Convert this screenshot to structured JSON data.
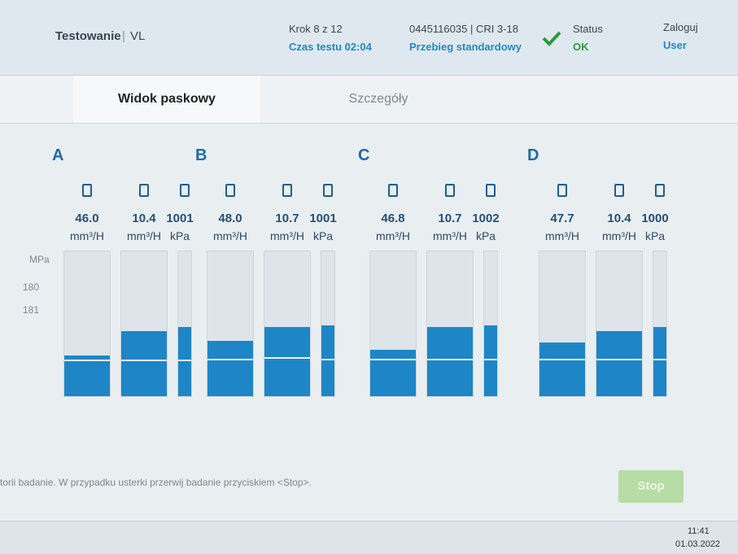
{
  "header": {
    "title": "Testowanie",
    "subtitle": "VL",
    "step": "Krok 8 z 12",
    "time": "Czas testu 02:04",
    "part": "0445116035 | CRI 3-18",
    "mode": "Przebieg standardowy",
    "status_label": "Status",
    "status_value": "OK",
    "login_label": "Zaloguj",
    "login_user": "User"
  },
  "tabs": [
    "Widok paskowy",
    "Szczegóły"
  ],
  "side": {
    "header": "MPa",
    "values": [
      "180",
      "181"
    ]
  },
  "groups": [
    {
      "label": "A",
      "bars": [
        {
          "value": "46.0",
          "unit": "mm³/H",
          "level": 28,
          "marker": 24
        },
        {
          "value": "10.4",
          "unit": "mm³/H",
          "level": 45,
          "marker": 24
        },
        {
          "value": "1001",
          "unit": "kPa",
          "level": 48,
          "marker": 24
        }
      ]
    },
    {
      "label": "B",
      "bars": [
        {
          "value": "48.0",
          "unit": "mm³/H",
          "level": 38,
          "marker": 25
        },
        {
          "value": "10.7",
          "unit": "mm³/H",
          "level": 48,
          "marker": 26
        },
        {
          "value": "1001",
          "unit": "kPa",
          "level": 49,
          "marker": 25
        }
      ]
    },
    {
      "label": "C",
      "bars": [
        {
          "value": "46.8",
          "unit": "mm³/H",
          "level": 32,
          "marker": 25
        },
        {
          "value": "10.7",
          "unit": "mm³/H",
          "level": 48,
          "marker": 25
        },
        {
          "value": "1002",
          "unit": "kPa",
          "level": 49,
          "marker": 25
        }
      ]
    },
    {
      "label": "D",
      "bars": [
        {
          "value": "47.7",
          "unit": "mm³/H",
          "level": 37,
          "marker": 25
        },
        {
          "value": "10.4",
          "unit": "mm³/H",
          "level": 45,
          "marker": 25
        },
        {
          "value": "1000",
          "unit": "kPa",
          "level": 48,
          "marker": 25
        }
      ]
    }
  ],
  "message": "torii badanie. W przypadku usterki przerwij badanie przyciskiem <Stop>.",
  "stop": "Stop",
  "clock": {
    "time": "11:41",
    "date": "01.03.2022"
  }
}
